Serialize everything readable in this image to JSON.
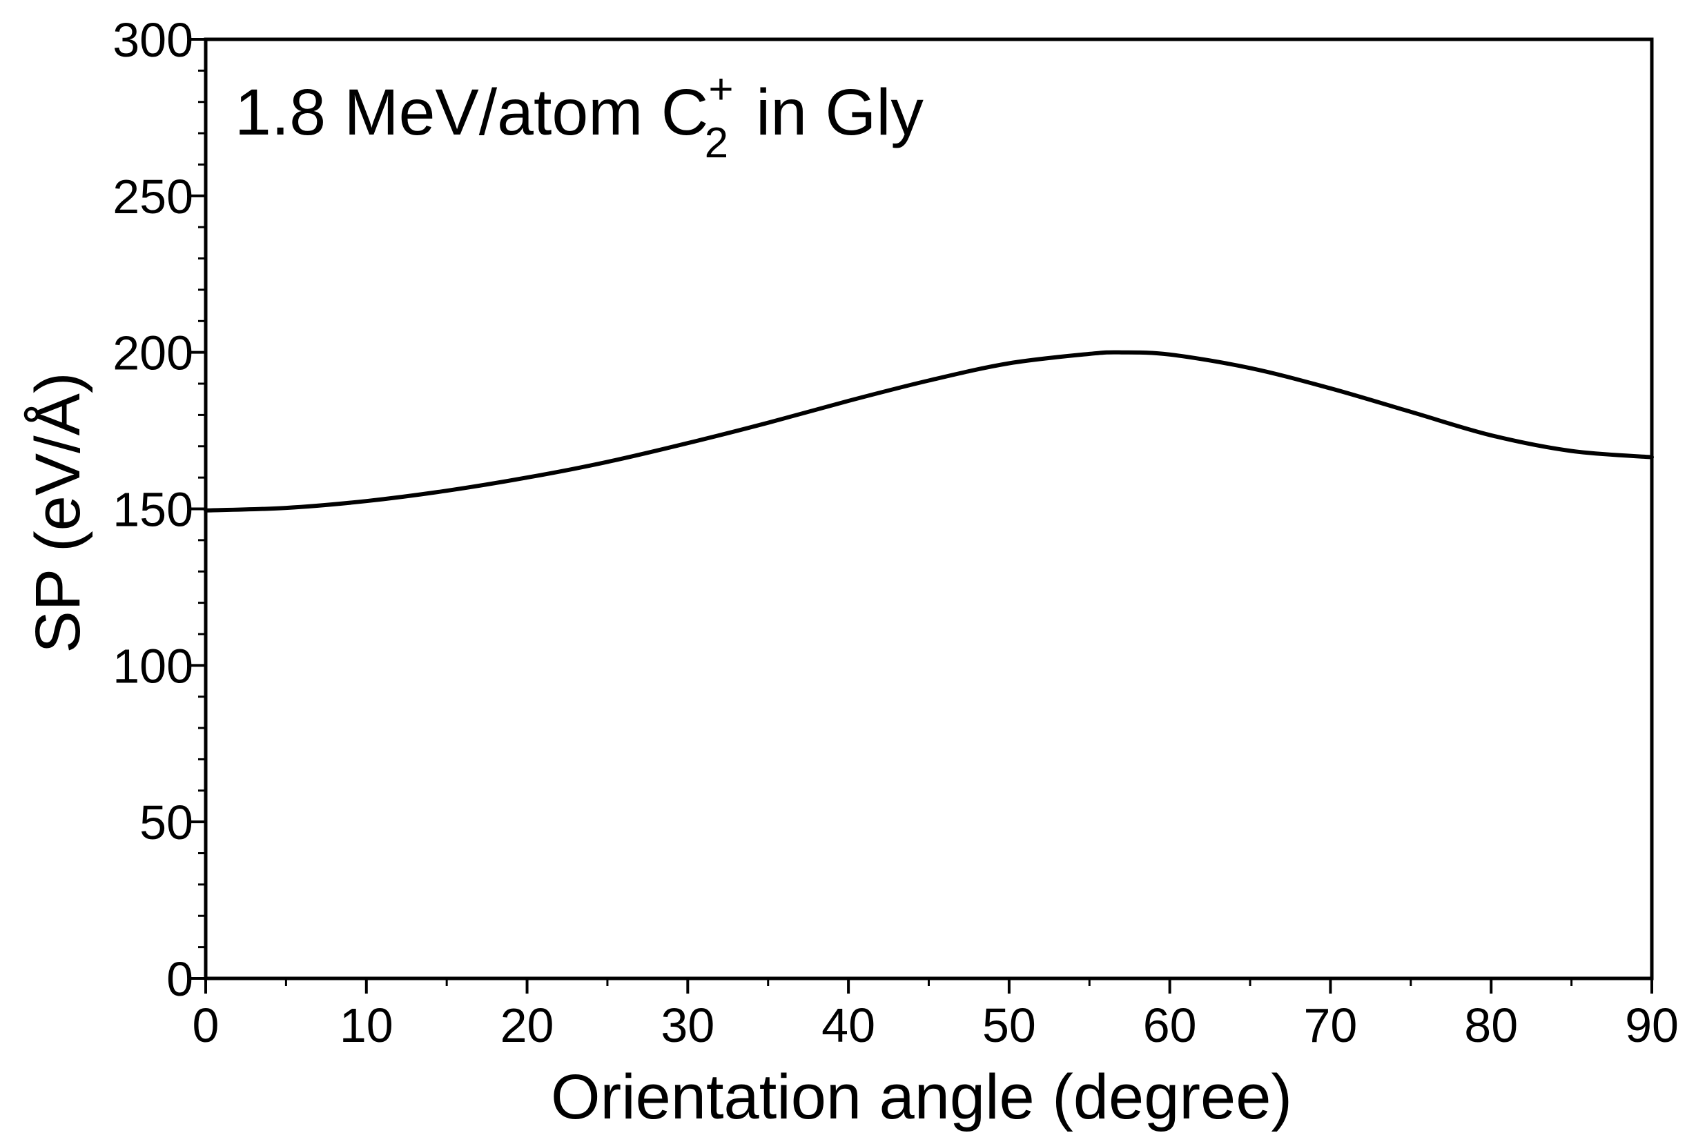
{
  "chart_data": {
    "type": "line",
    "title": "",
    "annotation": {
      "prefix": "1.8 MeV/atom C",
      "subscript": "2",
      "superscript": "+",
      "suffix": "in Gly"
    },
    "xlabel": "Orientation angle (degree)",
    "ylabel": "SP (eV/Å)",
    "xlim": [
      0,
      90
    ],
    "ylim": [
      0,
      300
    ],
    "xticks": [
      0,
      10,
      20,
      30,
      40,
      50,
      60,
      70,
      80,
      90
    ],
    "yticks": [
      0,
      50,
      100,
      150,
      200,
      250,
      300
    ],
    "x_minor_step": 5,
    "y_minor_step": 10,
    "grid": false,
    "line_color": "#000000",
    "series": [
      {
        "x": [
          0,
          5,
          10,
          15,
          20,
          25,
          30,
          35,
          40,
          45,
          50,
          55,
          57,
          60,
          65,
          70,
          75,
          80,
          85,
          90
        ],
        "y": [
          149.5,
          150.3,
          152.5,
          155.8,
          160,
          165,
          171,
          177.5,
          184.5,
          191,
          196.5,
          199.5,
          200,
          199.3,
          195,
          188.5,
          181,
          173.5,
          168.5,
          166.5
        ]
      }
    ]
  }
}
